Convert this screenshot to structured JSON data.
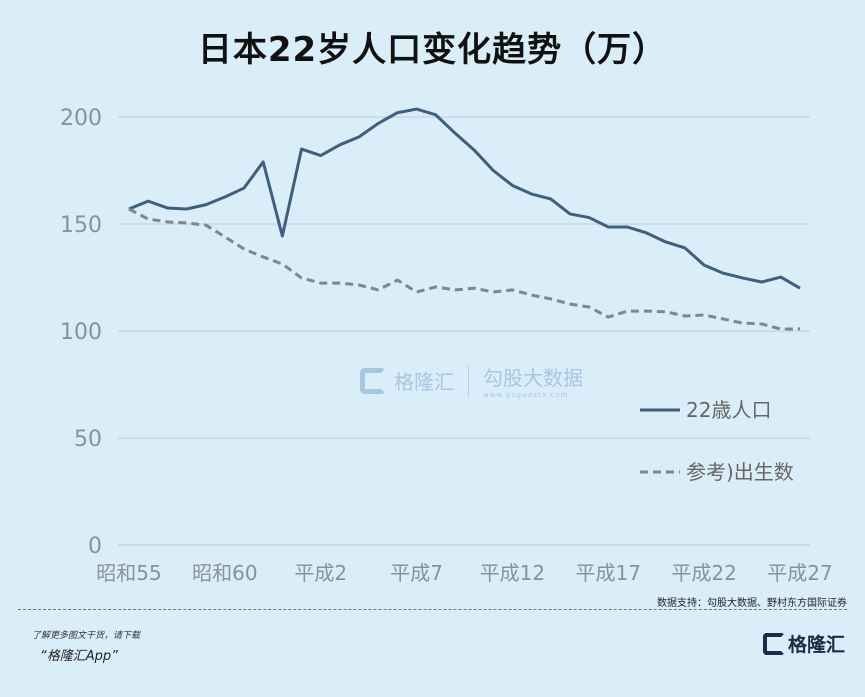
{
  "chart_data": {
    "type": "line",
    "title": "日本22岁人口变化趋势（万）",
    "xlabel": "",
    "ylabel": "",
    "ylim": [
      0,
      200
    ],
    "yticks": [
      0,
      50,
      100,
      150,
      200
    ],
    "grid": true,
    "legend_position": "right",
    "x_tick_labels": [
      "昭和55",
      "昭和60",
      "平成2",
      "平成7",
      "平成12",
      "平成17",
      "平成22",
      "平成27"
    ],
    "x": [
      1980,
      1981,
      1982,
      1983,
      1984,
      1985,
      1986,
      1987,
      1988,
      1989,
      1990,
      1991,
      1992,
      1993,
      1994,
      1995,
      1996,
      1997,
      1998,
      1999,
      2000,
      2001,
      2002,
      2003,
      2004,
      2005,
      2006,
      2007,
      2008,
      2009,
      2010,
      2011,
      2012,
      2013,
      2014,
      2015
    ],
    "series": [
      {
        "name": "22歳人口",
        "style": "solid",
        "color": "#3f5f7f",
        "values": [
          157,
          160.7,
          157.5,
          157,
          159,
          162.6,
          166.8,
          179,
          144.4,
          185,
          182,
          187,
          190.7,
          197,
          202,
          203.7,
          201,
          192.5,
          184.6,
          175,
          168,
          164,
          161.7,
          154.7,
          153,
          148.6,
          148.6,
          145.8,
          141.6,
          138.8,
          130.8,
          127,
          124.8,
          122.9,
          125.2,
          120
        ]
      },
      {
        "name": "参考)出生数",
        "style": "dashed",
        "color": "#7f868c",
        "values": [
          157,
          152.3,
          151,
          150.5,
          149.5,
          144,
          138.3,
          134.6,
          131.3,
          124.8,
          122.4,
          122.4,
          121.5,
          119.2,
          123.8,
          118.2,
          120.6,
          119.2,
          120,
          118.2,
          119.2,
          116.8,
          115,
          112.6,
          111.2,
          106.5,
          109.3,
          109.3,
          109,
          107,
          107.5,
          105.6,
          103.7,
          103.3,
          100.9,
          101
        ]
      }
    ]
  },
  "source": "数据支持：勾股大数据、野村东方国际证券",
  "promo": {
    "line1": "了解更多图文干货，请下载",
    "line2": "“格隆汇App”"
  },
  "logo": {
    "text": "格隆汇"
  },
  "watermark": {
    "brand1": "格隆汇",
    "brand2": "勾股大数据",
    "brand2_url": "www.gogudata.com"
  },
  "colors": {
    "background": "#daeef9",
    "grid": "#c3d9e6",
    "axis_text": "#8a9299"
  }
}
